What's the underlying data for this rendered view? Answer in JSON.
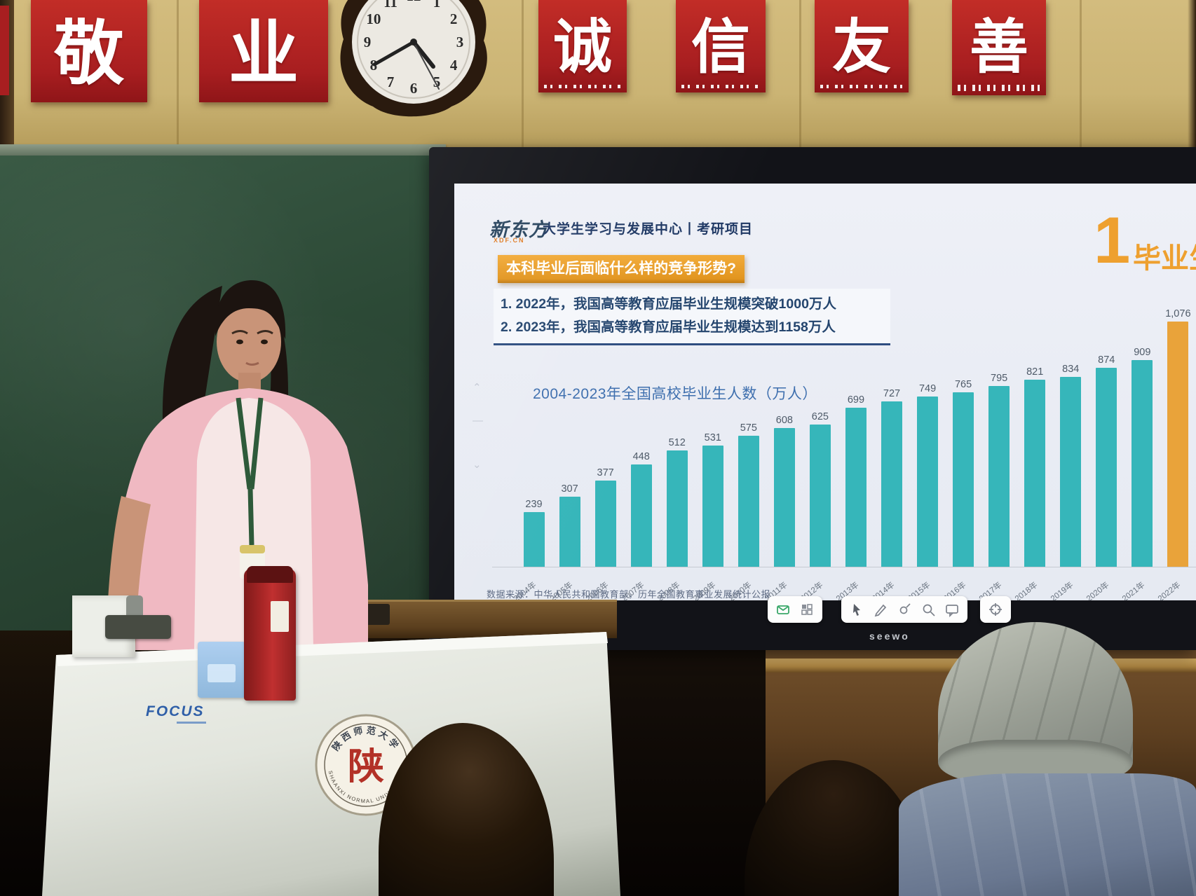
{
  "banner": {
    "characters": [
      "敬",
      "业",
      "诚",
      "信",
      "友",
      "善"
    ]
  },
  "clock": {
    "numerals": [
      "1",
      "2",
      "3",
      "4",
      "5",
      "6",
      "7",
      "8",
      "9",
      "10",
      "11",
      "12"
    ]
  },
  "screen": {
    "brand": "seewo",
    "slide": {
      "logo_text": "新东方",
      "logo_sub": "XDF.CN",
      "header_text": "大学生学习与发展中心丨考研项目",
      "section_number": "1",
      "section_title": "毕业生",
      "question_title": "本科毕业后面临什么样的竞争形势?",
      "points": [
        "1. 2022年，我国高等教育应届毕业生规模突破1000万人",
        "2. 2023年，我国高等教育应届毕业生规模达到1158万人"
      ],
      "fade_icons": [
        "chevron-up",
        "dash",
        "chevron-down"
      ],
      "source_note": "数据来源：中华人民共和国教育部，历年全国教育事业发展统计公报"
    },
    "toolbar": {
      "groups": [
        [
          "mail",
          "grid"
        ],
        [
          "cursor",
          "pen",
          "laser",
          "search",
          "comment"
        ],
        [
          "crosshair"
        ]
      ]
    }
  },
  "chart_data": {
    "type": "bar",
    "title": "2004-2023年全国高校毕业生人数（万人）",
    "categories": [
      "2004年",
      "2005年",
      "2006年",
      "2007年",
      "2008年",
      "2009年",
      "2010年",
      "2011年",
      "2012年",
      "2013年",
      "2014年",
      "2015年",
      "2016年",
      "2017年",
      "2018年",
      "2019年",
      "2020年",
      "2021年",
      "2022年"
    ],
    "values": [
      239,
      307,
      377,
      448,
      512,
      531,
      575,
      608,
      625,
      699,
      727,
      749,
      765,
      795,
      821,
      834,
      874,
      909,
      1076
    ],
    "labels": [
      "239",
      "307",
      "377",
      "448",
      "512",
      "531",
      "575",
      "608",
      "625",
      "699",
      "727",
      "749",
      "765",
      "795",
      "821",
      "834",
      "874",
      "909",
      "1,076"
    ],
    "bar_color": "#36b6ba",
    "highlight_index": 18,
    "highlight_color": "#e9a33a",
    "ylim": [
      0,
      1100
    ],
    "gridlines": false,
    "legend": "none",
    "xlabel": "",
    "ylabel": "万人"
  },
  "podium": {
    "brand": "FOCUS",
    "seal": {
      "top_text": "陕西师范大学",
      "center_char": "陕",
      "bottom_text": "SHAANXI NORMAL UNIVERSITY"
    }
  }
}
